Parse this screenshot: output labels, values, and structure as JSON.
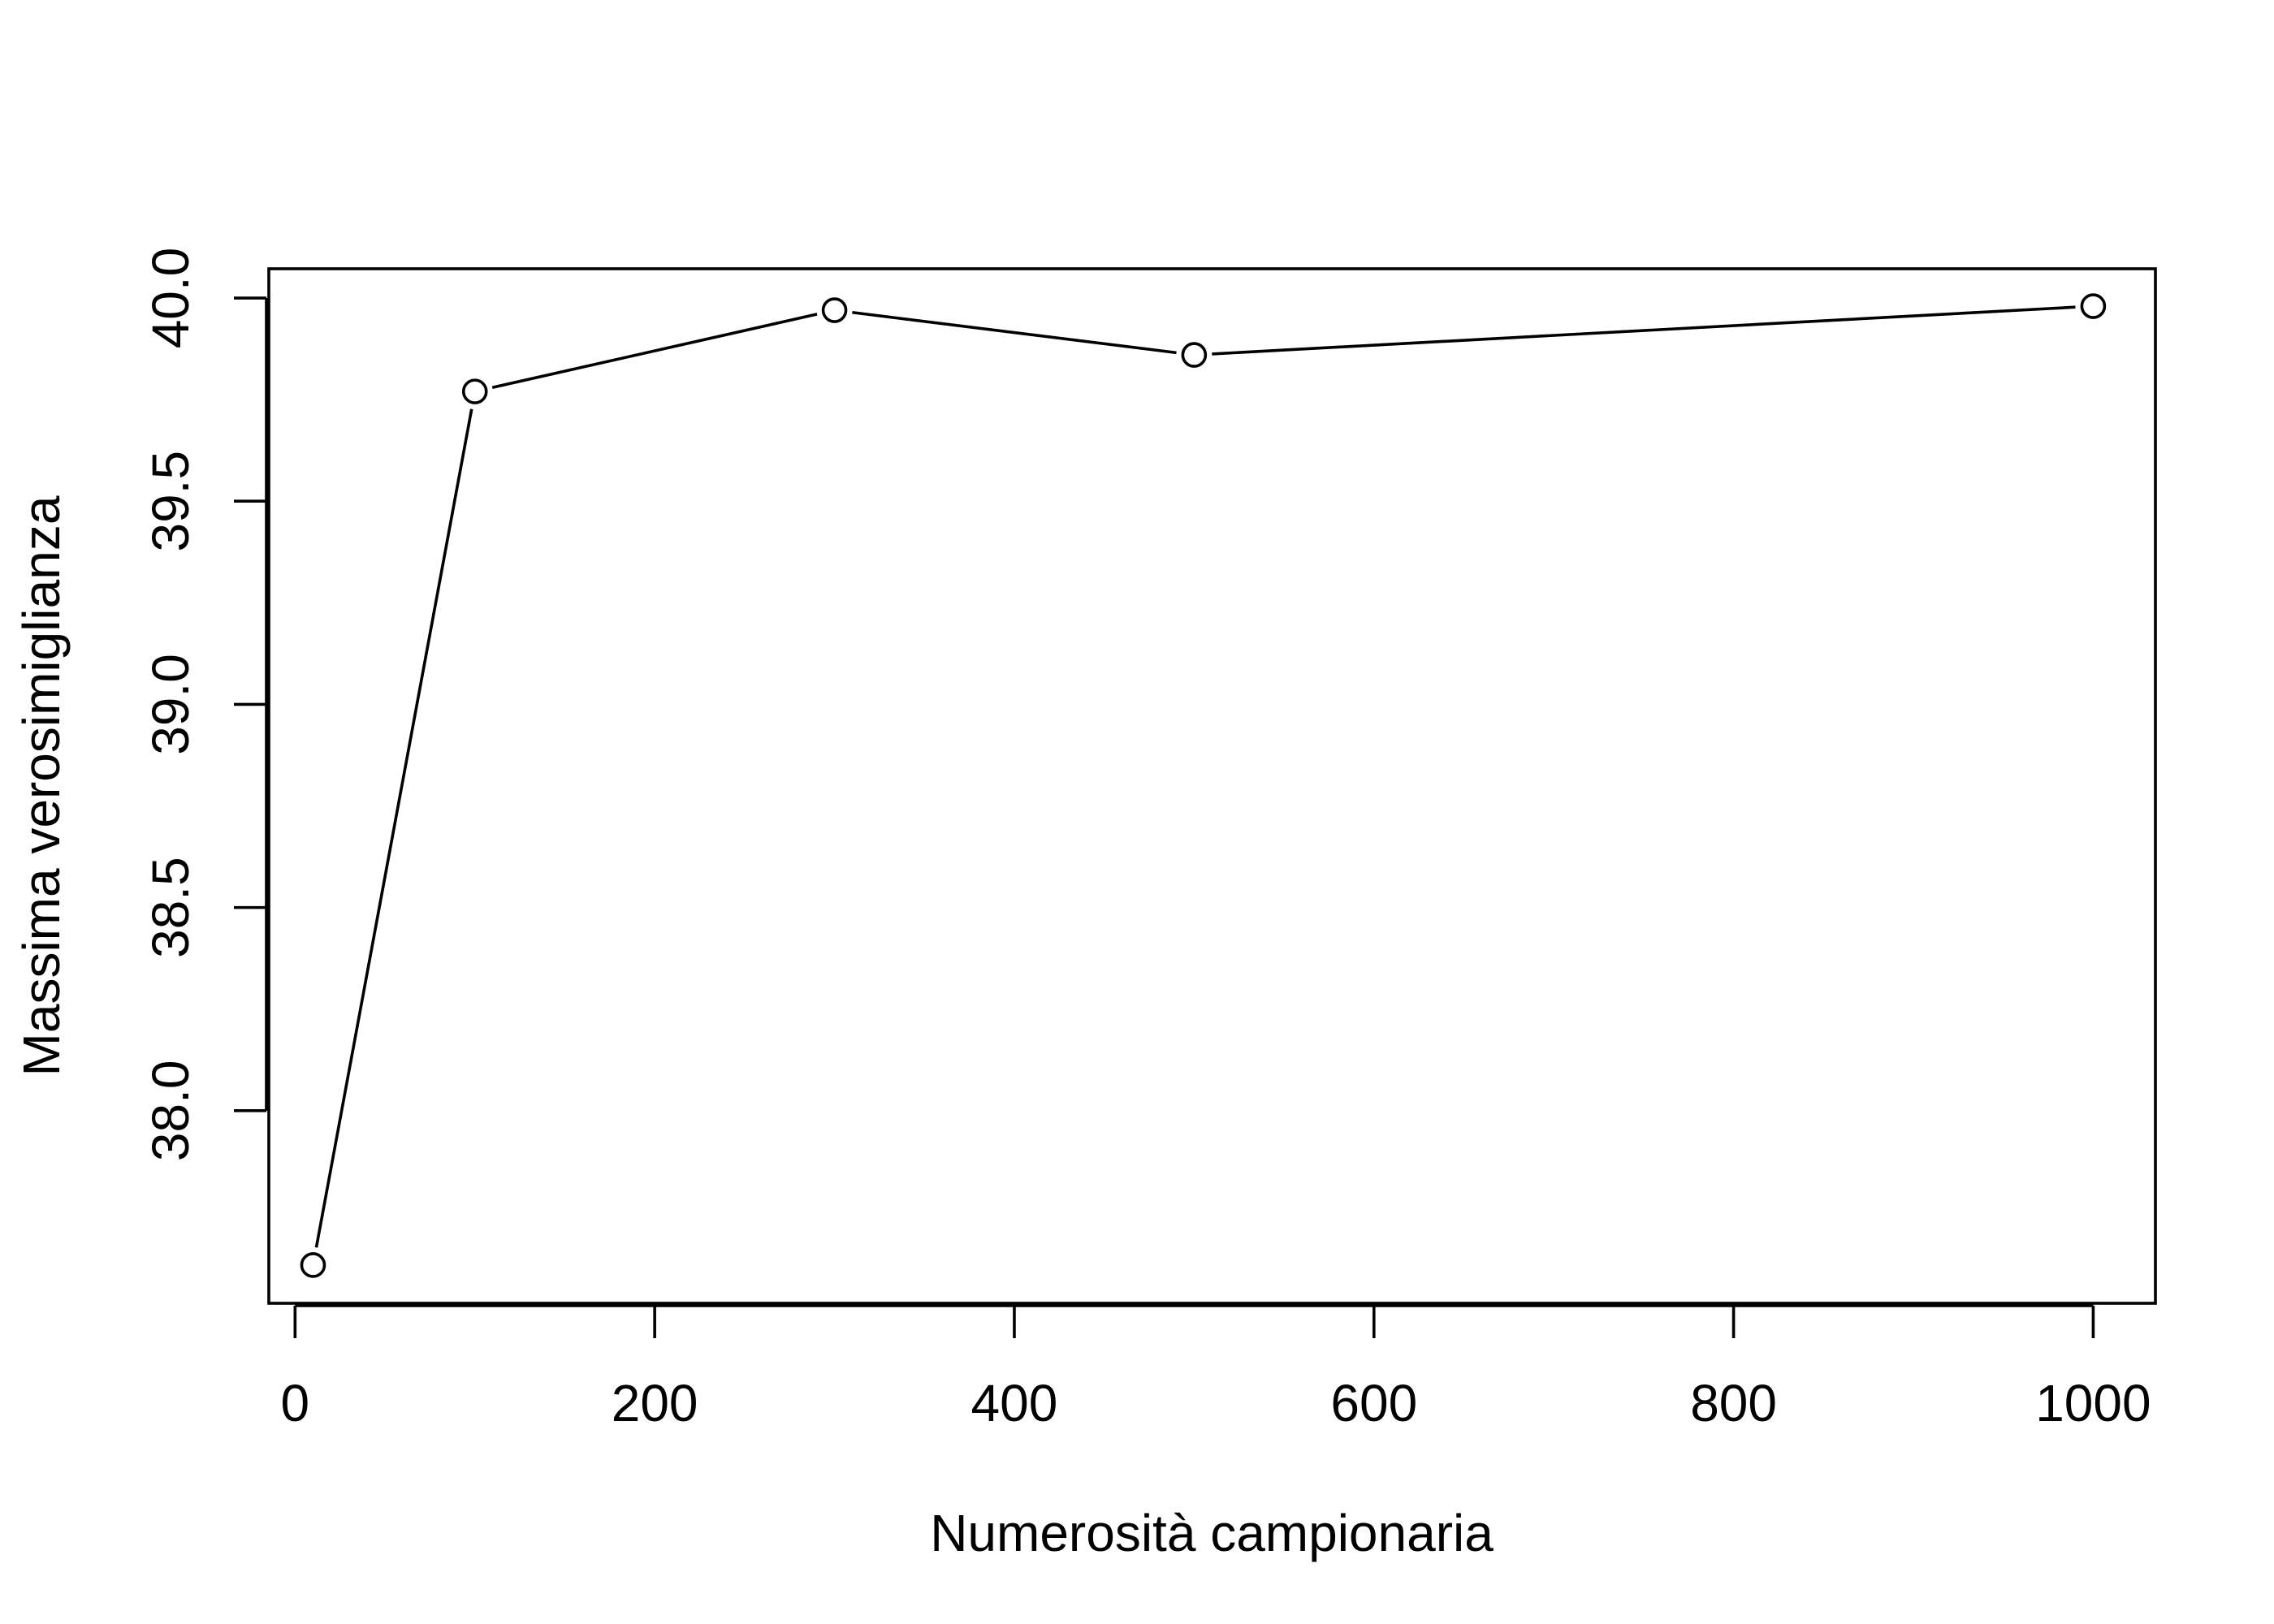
{
  "chart_data": {
    "type": "line",
    "title": "",
    "xlabel": "Numerosità campionaria",
    "ylabel": "Massima verosimiglianza",
    "xlim": [
      -14.6,
      1034.6
    ],
    "ylim": [
      37.526,
      40.072
    ],
    "x_ticks": [
      0,
      200,
      400,
      600,
      800,
      1000
    ],
    "x_tick_labels": [
      "0",
      "200",
      "400",
      "600",
      "800",
      "1000"
    ],
    "y_ticks": [
      38.0,
      38.5,
      39.0,
      39.5,
      40.0
    ],
    "y_tick_labels": [
      "38.0",
      "38.5",
      "39.0",
      "39.5",
      "40.0"
    ],
    "grid": false,
    "legend": "none",
    "series": [
      {
        "x": [
          10,
          100,
          300,
          500,
          1000
        ],
        "y": [
          37.62,
          39.77,
          39.97,
          39.86,
          39.98
        ],
        "marker": "open-circle",
        "line": true
      }
    ]
  }
}
